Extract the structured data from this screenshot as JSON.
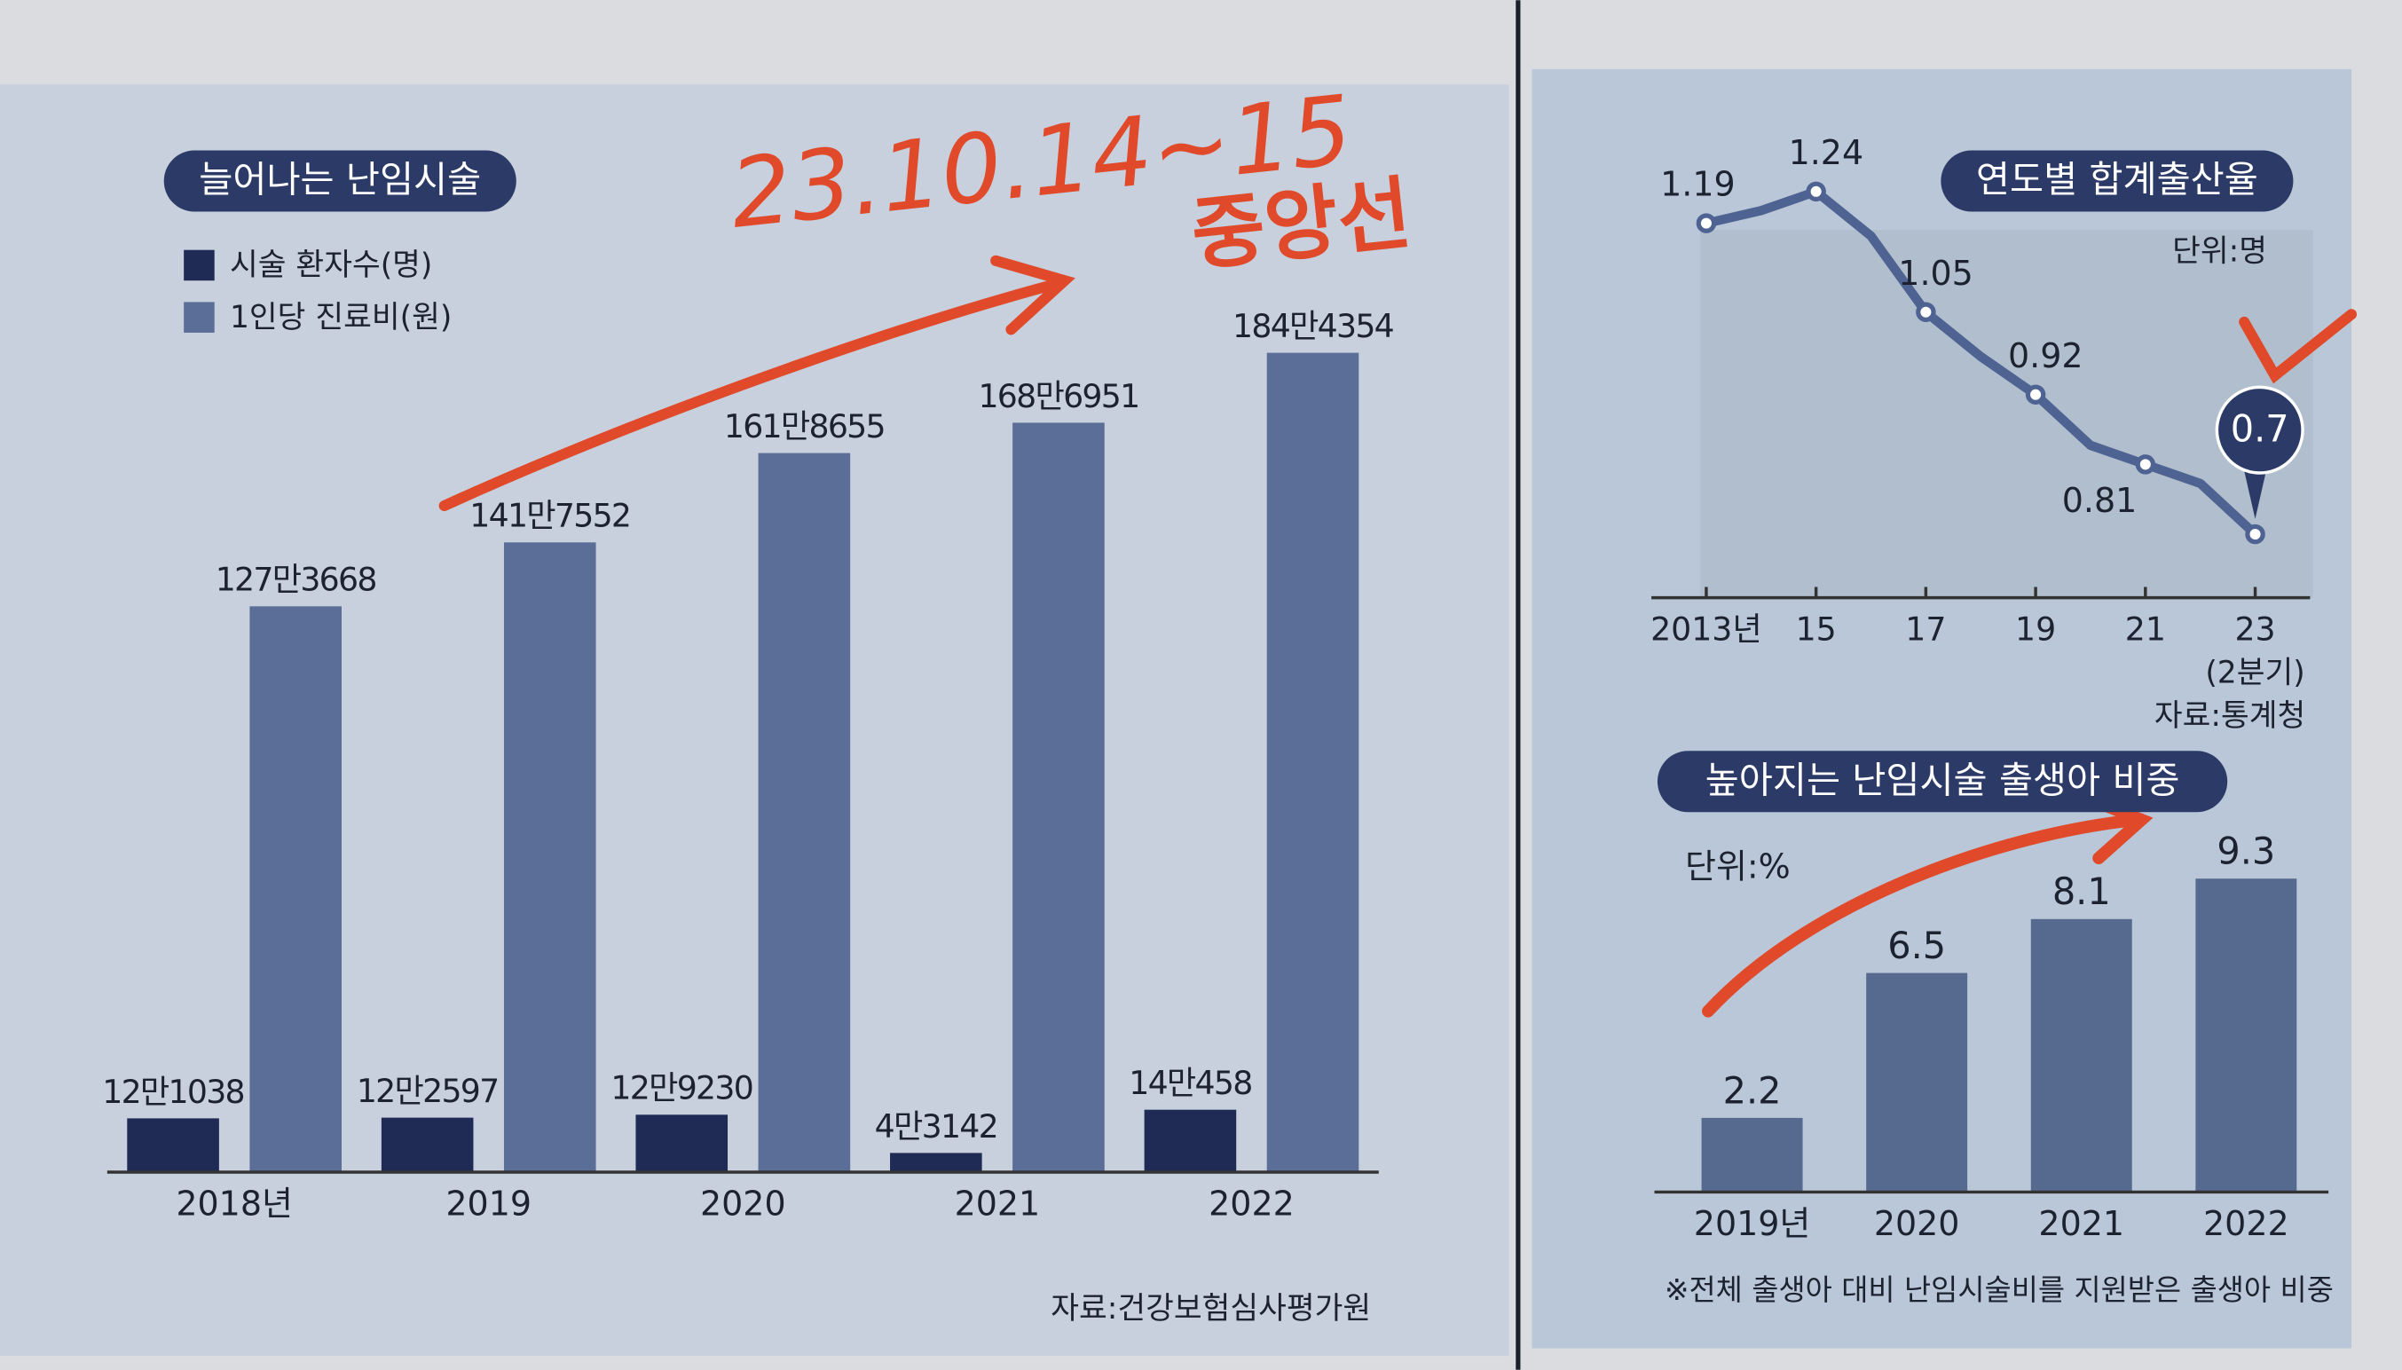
{
  "handwriting": {
    "date": "23.10.14~15",
    "source": "중앙선"
  },
  "chart_data": [
    {
      "type": "bar",
      "title": "늘어나는 난임시술",
      "categories": [
        "2018년",
        "2019",
        "2020",
        "2021",
        "2022"
      ],
      "series": [
        {
          "name": "시술 환자수(명)",
          "color": "#1f2a55",
          "values": [
            121038,
            122597,
            129230,
            43142,
            140458
          ],
          "value_labels": [
            "12만1038",
            "12만2597",
            "12만9230",
            "4만3142",
            "14만458"
          ]
        },
        {
          "name": "1인당 진료비(원)",
          "color": "#5a6e98",
          "values": [
            1273668,
            1417552,
            1618655,
            1686951,
            1844354
          ],
          "value_labels": [
            "127만3668",
            "141만7552",
            "161만8655",
            "168만6951",
            "184만4354"
          ]
        }
      ],
      "ylim": [
        0,
        2000000
      ],
      "legend": "top-left",
      "source": "자료:건강보험심사평가원"
    },
    {
      "type": "line",
      "title": "연도별 합계출산율",
      "unit": "단위:명",
      "x": [
        2013,
        2014,
        2015,
        2016,
        2017,
        2018,
        2019,
        2020,
        2021,
        2022,
        2023
      ],
      "values": [
        1.19,
        1.21,
        1.24,
        1.17,
        1.05,
        0.98,
        0.92,
        0.84,
        0.81,
        0.78,
        0.7
      ],
      "value_labels": [
        "1.19",
        null,
        "1.24",
        null,
        "1.05",
        null,
        "0.92",
        null,
        "0.81",
        null,
        "0.7"
      ],
      "color": "#4e6392",
      "xlim": [
        2012,
        2024
      ],
      "xticks": [
        {
          "value": 2013,
          "label": "2013년"
        },
        {
          "value": 2015,
          "label": "15"
        },
        {
          "value": 2017,
          "label": "17"
        },
        {
          "value": 2019,
          "label": "19"
        },
        {
          "value": 2021,
          "label": "21"
        },
        {
          "value": 2023,
          "label": "23"
        }
      ],
      "ylim": [
        0.6,
        1.3
      ],
      "x_note": "(2분기)",
      "source": "자료:통계청"
    },
    {
      "type": "bar",
      "title": "높아지는 난임시술 출생아 비중",
      "unit": "단위:%",
      "categories": [
        "2019년",
        "2020",
        "2021",
        "2022"
      ],
      "values": [
        2.2,
        6.5,
        8.1,
        9.3
      ],
      "color": "#56698f",
      "ylim": [
        0,
        10
      ],
      "note": "※전체 출생아 대비 난임시술비를 지원받은 출생아 비중"
    }
  ]
}
